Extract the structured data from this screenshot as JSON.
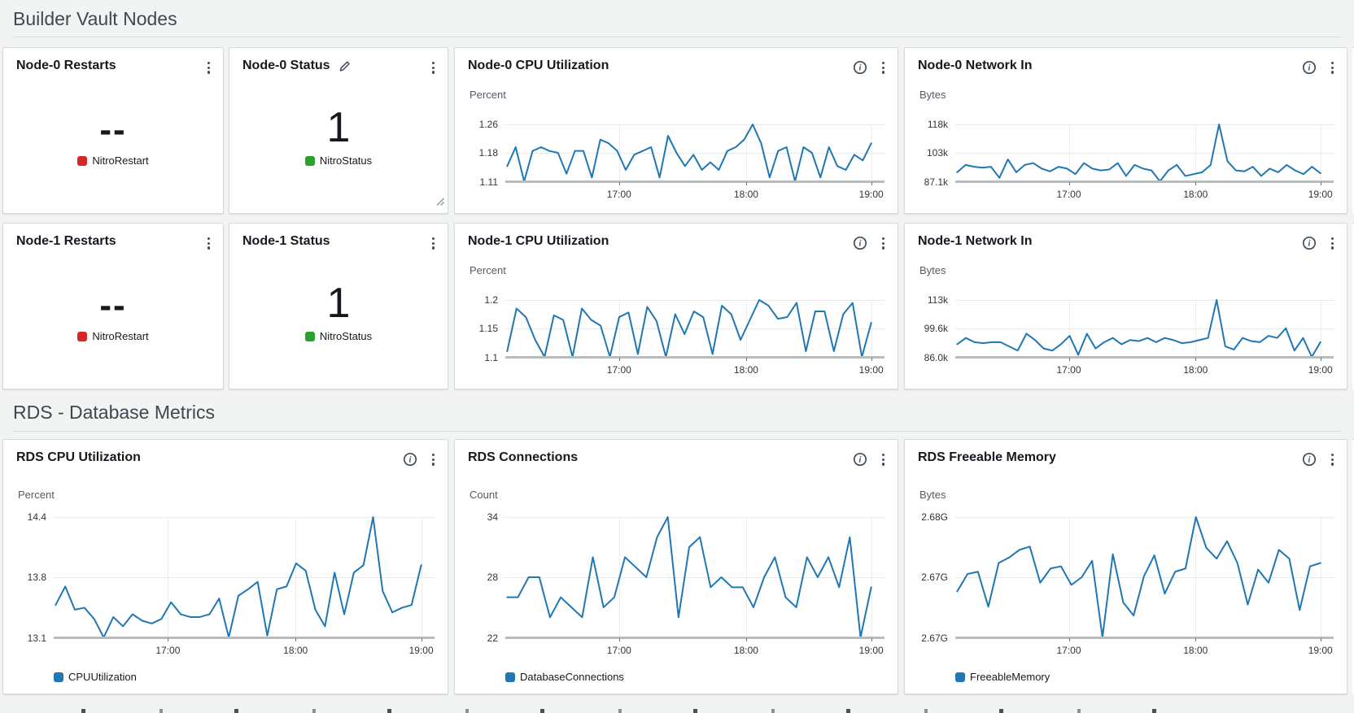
{
  "colors": {
    "chart_line": "#1f77b4",
    "legend_red": "#d62728",
    "legend_green": "#2ca02c",
    "legend_blue": "#1f77b4",
    "page_background": "#f2f3f3",
    "baseline_gray": "#b7bcbc"
  },
  "sections": [
    {
      "title": "Builder Vault Nodes"
    },
    {
      "title": "RDS - Database Metrics"
    }
  ],
  "value_widgets": [
    {
      "title": "Node-0 Restarts",
      "value": "--",
      "legend": "NitroRestart",
      "legend_color": "#d62728"
    },
    {
      "title": "Node-0 Status",
      "value": "1",
      "legend": "NitroStatus",
      "legend_color": "#2ca02c"
    },
    {
      "title": "Node-1 Restarts",
      "value": "--",
      "legend": "NitroRestart",
      "legend_color": "#d62728"
    },
    {
      "title": "Node-1 Status",
      "value": "1",
      "legend": "NitroStatus",
      "legend_color": "#2ca02c"
    }
  ],
  "chart_data": [
    {
      "type": "line",
      "title": "Node-0 CPU Utilization",
      "ylabel": "Percent",
      "yticks": [
        "1.26",
        "1.18",
        "1.11"
      ],
      "ylim": [
        1.11,
        1.26
      ],
      "xticks": [
        "17:00",
        "18:00",
        "19:00"
      ],
      "legend": null,
      "grid": "horizontal",
      "values": [
        1.15,
        1.2,
        1.11,
        1.19,
        1.2,
        1.19,
        1.185,
        1.13,
        1.19,
        1.19,
        1.12,
        1.22,
        1.21,
        1.19,
        1.14,
        1.18,
        1.19,
        1.2,
        1.12,
        1.23,
        1.185,
        1.15,
        1.18,
        1.14,
        1.16,
        1.14,
        1.19,
        1.2,
        1.22,
        1.26,
        1.21,
        1.12,
        1.19,
        1.2,
        1.11,
        1.2,
        1.185,
        1.12,
        1.2,
        1.15,
        1.14,
        1.18,
        1.165,
        1.21
      ]
    },
    {
      "type": "line",
      "title": "Node-0 Network In",
      "ylabel": "Bytes",
      "yticks": [
        "118k",
        "103k",
        "87.1k"
      ],
      "ylim": [
        87.1,
        118
      ],
      "xticks": [
        "17:00",
        "18:00",
        "19:00"
      ],
      "legend": null,
      "grid": "horizontal",
      "values": [
        92,
        96,
        95,
        94.5,
        95,
        89,
        99,
        92,
        96,
        97,
        94,
        92.5,
        95,
        94,
        91,
        97,
        94,
        93,
        93.5,
        97,
        90,
        96,
        94,
        93,
        87.1,
        93,
        96,
        90,
        91,
        92,
        96,
        118,
        98,
        93,
        92.5,
        95,
        90,
        94,
        92,
        96,
        93,
        91,
        95,
        91.5
      ]
    },
    {
      "type": "line",
      "title": "Node-1 CPU Utilization",
      "ylabel": "Percent",
      "yticks": [
        "1.2",
        "1.15",
        "1.1"
      ],
      "ylim": [
        1.1,
        1.2
      ],
      "xticks": [
        "17:00",
        "18:00",
        "19:00"
      ],
      "legend": null,
      "grid": "horizontal",
      "values": [
        1.11,
        1.185,
        1.17,
        1.13,
        1.1,
        1.173,
        1.165,
        1.1,
        1.185,
        1.165,
        1.155,
        1.1,
        1.17,
        1.178,
        1.105,
        1.188,
        1.163,
        1.1,
        1.175,
        1.14,
        1.18,
        1.17,
        1.105,
        1.19,
        1.175,
        1.13,
        1.165,
        1.2,
        1.19,
        1.167,
        1.17,
        1.195,
        1.11,
        1.18,
        1.18,
        1.11,
        1.175,
        1.195,
        1.1,
        1.16
      ]
    },
    {
      "type": "line",
      "title": "Node-1 Network In",
      "ylabel": "Bytes",
      "yticks": [
        "113k",
        "99.6k",
        "86.0k"
      ],
      "ylim": [
        86,
        113
      ],
      "xticks": [
        "17:00",
        "18:00",
        "19:00"
      ],
      "legend": null,
      "grid": "horizontal",
      "values": [
        92,
        95,
        93,
        92.5,
        93,
        93,
        91,
        89,
        97,
        94,
        90,
        89,
        92,
        96,
        87,
        97,
        90,
        93,
        95,
        92,
        94,
        93.5,
        95,
        93,
        95,
        94,
        92.5,
        93,
        94,
        95,
        113,
        91,
        89.5,
        95,
        93.5,
        93,
        96,
        95,
        99.6,
        89,
        95,
        86,
        93
      ]
    },
    {
      "type": "line",
      "title": "RDS CPU Utilization",
      "ylabel": "Percent",
      "yticks": [
        "14.4",
        "13.8",
        "13.1"
      ],
      "ylim": [
        13.1,
        14.4
      ],
      "xticks": [
        "17:00",
        "18:00",
        "19:00"
      ],
      "legend": "CPUUtilization",
      "grid": "horizontal",
      "values": [
        13.45,
        13.65,
        13.4,
        13.42,
        13.3,
        13.1,
        13.32,
        13.22,
        13.35,
        13.28,
        13.25,
        13.3,
        13.48,
        13.35,
        13.32,
        13.32,
        13.35,
        13.52,
        13.1,
        13.55,
        13.62,
        13.7,
        13.12,
        13.62,
        13.65,
        13.9,
        13.82,
        13.4,
        13.22,
        13.8,
        13.35,
        13.8,
        13.88,
        14.4,
        13.6,
        13.37,
        13.42,
        13.45,
        13.88
      ]
    },
    {
      "type": "line",
      "title": "RDS Connections",
      "ylabel": "Count",
      "yticks": [
        "34",
        "28",
        "22"
      ],
      "ylim": [
        22,
        34
      ],
      "xticks": [
        "17:00",
        "18:00",
        "19:00"
      ],
      "legend": "DatabaseConnections",
      "grid": "horizontal",
      "values": [
        26,
        26,
        28,
        28,
        24,
        26,
        25,
        24,
        30,
        25,
        26,
        30,
        29,
        28,
        32,
        34,
        24,
        31,
        32,
        27,
        28,
        27,
        27,
        25,
        28,
        30,
        26,
        25,
        30,
        28,
        30,
        27,
        32,
        22,
        27
      ]
    },
    {
      "type": "line",
      "title": "RDS Freeable Memory",
      "ylabel": "Bytes",
      "yticks": [
        "2.68G",
        "2.67G",
        "2.67G"
      ],
      "ylim": [
        2.669,
        2.68
      ],
      "xticks": [
        "17:00",
        "18:00",
        "19:00"
      ],
      "legend": "FreeableMemory",
      "grid": "horizontal",
      "values": [
        2.6732,
        2.6748,
        2.675,
        2.6718,
        2.6758,
        2.6763,
        2.677,
        2.6773,
        2.674,
        2.6753,
        2.6755,
        2.6738,
        2.6745,
        2.676,
        2.669,
        2.6766,
        2.6722,
        2.671,
        2.6746,
        2.6765,
        2.673,
        2.675,
        2.6753,
        2.68,
        2.6772,
        2.6762,
        2.6778,
        2.6758,
        2.672,
        2.6752,
        2.674,
        2.677,
        2.6762,
        2.6715,
        2.6755,
        2.6758
      ]
    }
  ]
}
